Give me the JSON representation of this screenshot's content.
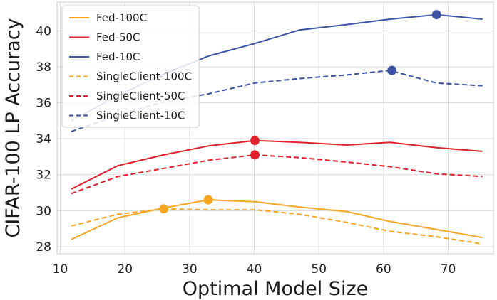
{
  "chart_data": {
    "type": "line",
    "title": "",
    "xlabel": "Optimal Model Size",
    "ylabel": "CIFAR-100 LP Accuracy",
    "xlim": [
      9.5,
      77
    ],
    "ylim": [
      27.6,
      41.6
    ],
    "xticks": [
      10,
      20,
      30,
      40,
      50,
      60,
      70
    ],
    "yticks": [
      28,
      30,
      32,
      34,
      36,
      38,
      40
    ],
    "grid": true,
    "legend_position": "top-left",
    "series": [
      {
        "name": "Fed-100C",
        "color": "#f5a623",
        "dash": "solid",
        "x": [
          11.7,
          18.9,
          26.0,
          32.9,
          40.1,
          47.0,
          54.3,
          61.0,
          68.2,
          75.3
        ],
        "y": [
          28.4,
          29.6,
          30.15,
          30.6,
          30.5,
          30.2,
          29.95,
          29.4,
          28.95,
          28.5
        ],
        "marker": {
          "x": 32.9,
          "y": 30.6
        }
      },
      {
        "name": "Fed-50C",
        "color": "#e0202a",
        "dash": "solid",
        "x": [
          11.7,
          18.9,
          26.0,
          32.9,
          40.1,
          47.0,
          54.3,
          61.0,
          68.2,
          75.3
        ],
        "y": [
          31.2,
          32.5,
          33.1,
          33.6,
          33.9,
          33.8,
          33.65,
          33.8,
          33.5,
          33.3
        ],
        "marker": {
          "x": 40.1,
          "y": 33.9
        }
      },
      {
        "name": "Fed-10C",
        "color": "#3b52a5",
        "dash": "solid",
        "x": [
          11.7,
          18.9,
          26.0,
          32.9,
          40.1,
          47.0,
          54.3,
          61.0,
          68.2,
          75.3
        ],
        "y": [
          35.0,
          36.4,
          37.6,
          38.6,
          39.3,
          40.05,
          40.35,
          40.65,
          40.9,
          40.65
        ],
        "marker": {
          "x": 68.2,
          "y": 40.9
        }
      },
      {
        "name": "SingleClient-100C",
        "color": "#f5a623",
        "dash": "dashed",
        "x": [
          11.7,
          18.9,
          26.0,
          32.9,
          40.1,
          47.0,
          54.3,
          61.0,
          68.2,
          75.3
        ],
        "y": [
          29.15,
          29.8,
          30.1,
          30.05,
          30.05,
          29.8,
          29.35,
          28.85,
          28.55,
          28.15
        ],
        "marker": {
          "x": 26.0,
          "y": 30.1
        }
      },
      {
        "name": "SingleClient-50C",
        "color": "#e0202a",
        "dash": "dashed",
        "x": [
          11.7,
          18.9,
          26.0,
          32.9,
          40.1,
          47.0,
          54.3,
          61.0,
          68.2,
          75.3
        ],
        "y": [
          30.95,
          31.9,
          32.35,
          32.8,
          33.1,
          32.95,
          32.7,
          32.45,
          32.05,
          31.9
        ],
        "marker": {
          "x": 40.1,
          "y": 33.1
        }
      },
      {
        "name": "SingleClient-10C",
        "color": "#3b52a5",
        "dash": "dashed",
        "x": [
          11.7,
          18.9,
          26.0,
          32.9,
          40.1,
          47.0,
          54.3,
          61.0,
          68.2,
          75.3
        ],
        "y": [
          34.4,
          35.3,
          36.05,
          36.5,
          37.1,
          37.35,
          37.55,
          37.8,
          37.1,
          36.95
        ],
        "marker": {
          "x": 61.3,
          "y": 37.8
        }
      }
    ]
  }
}
